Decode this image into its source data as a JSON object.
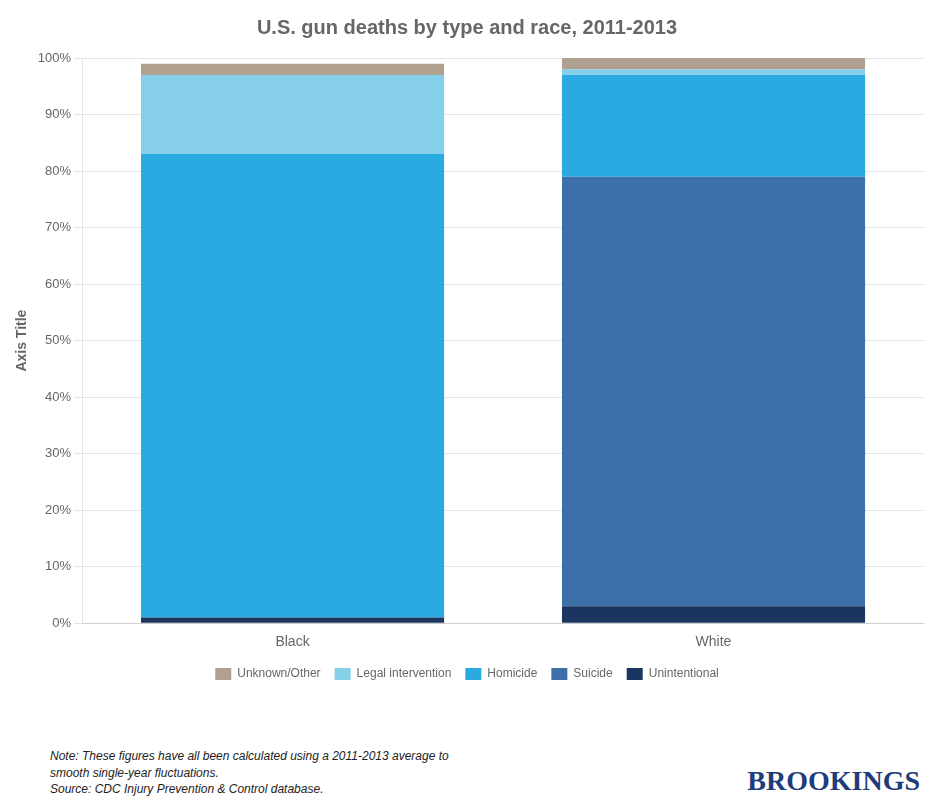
{
  "chart_data": {
    "type": "bar",
    "stacked": true,
    "title": "U.S. gun deaths by type and race, 2011-2013",
    "categories": [
      "Black",
      "White"
    ],
    "series": [
      {
        "name": "Unintentional",
        "color": "#1a3560",
        "values": [
          1.0,
          3.0
        ]
      },
      {
        "name": "Suicide",
        "color": "#3d6fa8",
        "values": [
          0.0,
          76.0
        ]
      },
      {
        "name": "Homicide",
        "color": "#29abe2",
        "values": [
          82.0,
          18.0
        ]
      },
      {
        "name": "Legal intervention",
        "color": "#85cfe8",
        "values": [
          14.0,
          1.0
        ]
      },
      {
        "name": "Unknown/Other",
        "color": "#b0a090",
        "values": [
          2.0,
          2.0
        ]
      }
    ],
    "y_label": "Axis Title",
    "ylim": [
      0,
      100
    ],
    "yticks": [
      {
        "value": 0,
        "label": "0%"
      },
      {
        "value": 10,
        "label": "10%"
      },
      {
        "value": 20,
        "label": "20%"
      },
      {
        "value": 30,
        "label": "30%"
      },
      {
        "value": 40,
        "label": "40%"
      },
      {
        "value": 50,
        "label": "50%"
      },
      {
        "value": 60,
        "label": "60%"
      },
      {
        "value": 70,
        "label": "70%"
      },
      {
        "value": 80,
        "label": "80%"
      },
      {
        "value": 90,
        "label": "90%"
      },
      {
        "value": 100,
        "label": "100%"
      }
    ],
    "grid": true,
    "legend": "bottom",
    "annotations": [
      "Note: These figures have all been calculated using a 2011-2013 average to\nsmooth single-year fluctuations.\nSource: CDC Injury Prevention & Control database.",
      "BROOKINGS"
    ]
  }
}
